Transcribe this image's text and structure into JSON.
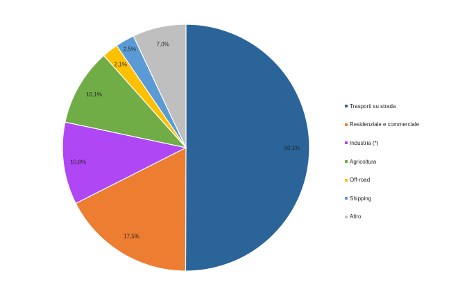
{
  "chart_data": {
    "type": "pie",
    "title": "",
    "categories": [
      "Trasporti su strada",
      "Residenziale e commerciale",
      "Industria (*)",
      "Agricoltura",
      "Off-road",
      "Shipping",
      "Altro"
    ],
    "values": [
      50.1,
      17.5,
      10.8,
      10.1,
      2.1,
      2.5,
      7.0
    ],
    "value_labels": [
      "50,1%",
      "17,5%",
      "10,8%",
      "10,1%",
      "2,1%",
      "2,5%",
      "7,0%"
    ],
    "colors": [
      "#2a6499",
      "#ed7d31",
      "#b047f5",
      "#70ad47",
      "#ffc000",
      "#5b9bd5",
      "#bfbfbf"
    ],
    "start_angle": "12 o'clock",
    "direction": "clockwise",
    "legend_position": "right"
  }
}
